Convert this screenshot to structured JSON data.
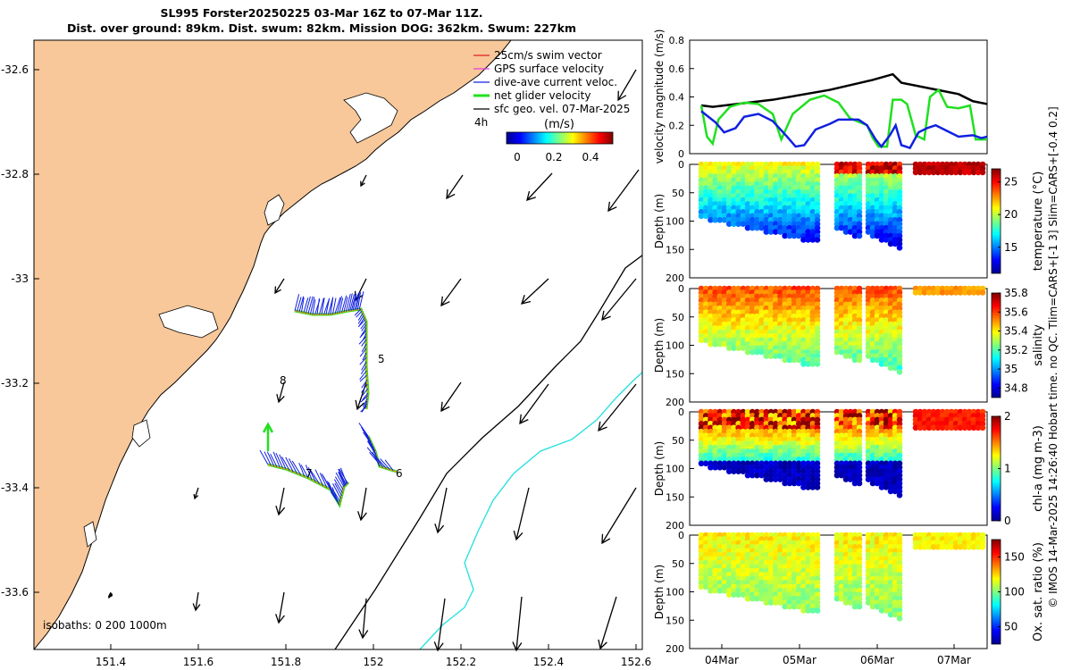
{
  "title": {
    "line1": "SL995 Forster20250225 03-Mar 16Z to 07-Mar 11Z.",
    "line2": "Dist. over ground: 89km. Dist. swum: 82km. Mission DOG: 362km. Swum: 227km"
  },
  "credit": "© IMOS 14-Mar-2025 14:26:40 Hobart time. no QC. Tlim=CARS+[-1 3] Slim=CARS+[-0.4 0.2]",
  "colors": {
    "land": "#F8C89A",
    "swim_vector": "#E02020",
    "gps_velocity": "#E040E0",
    "dive_current": "#1020E0",
    "net_velocity": "#20E020",
    "geo_velocity": "#000000",
    "isobath_200": "#000000",
    "isobath_1000": "#20E0E0"
  },
  "map": {
    "xticks": [
      "151.4",
      "151.6",
      "151.8",
      "152",
      "152.2",
      "152.4",
      "152.6"
    ],
    "yticks": [
      "-32.6",
      "-32.8",
      "-33",
      "-33.2",
      "-33.4",
      "-33.6"
    ],
    "legend": [
      {
        "label": "25cm/s swim vector",
        "color": "#E02020"
      },
      {
        "label": "GPS surface velocity",
        "color": "#E040E0"
      },
      {
        "label": "dive-ave current veloc.",
        "color": "#1020E0"
      },
      {
        "label": "net glider velocity",
        "color": "#20E020"
      },
      {
        "label": "sfc geo. vel. 07-Mar-2025",
        "color": "#000000"
      }
    ],
    "colorbar": {
      "label": "(m/s)",
      "ticks": [
        "0",
        "0.2",
        "0.4"
      ]
    },
    "track_labels": [
      "4h",
      "5",
      "6",
      "7",
      "8"
    ],
    "isobath_label": "isobaths: 0   200  1000m"
  },
  "chart_data": [
    {
      "type": "line",
      "name": "velocity-magnitude",
      "ylabel": "velocity magnitude (m/s)",
      "ylim": [
        0,
        0.8
      ],
      "yticks": [
        "0",
        "0.2",
        "0.4",
        "0.6",
        "0.8"
      ],
      "xlim": [
        0,
        1
      ],
      "series": [
        {
          "name": "sfc geo. vel.",
          "color": "#000000",
          "x": [
            0.0,
            0.04,
            0.25,
            0.45,
            0.6,
            0.67,
            0.7,
            0.8,
            0.9,
            0.95,
            1.0
          ],
          "values": [
            0.34,
            0.33,
            0.38,
            0.45,
            0.52,
            0.56,
            0.5,
            0.46,
            0.42,
            0.37,
            0.35
          ]
        },
        {
          "name": "net glider velocity",
          "color": "#20E020",
          "x": [
            0.0,
            0.02,
            0.04,
            0.06,
            0.1,
            0.15,
            0.2,
            0.25,
            0.28,
            0.32,
            0.38,
            0.43,
            0.48,
            0.52,
            0.58,
            0.6,
            0.62,
            0.65,
            0.67,
            0.7,
            0.72,
            0.75,
            0.78,
            0.8,
            0.83,
            0.86,
            0.9,
            0.94,
            0.96,
            1.0
          ],
          "values": [
            0.34,
            0.12,
            0.07,
            0.24,
            0.33,
            0.36,
            0.35,
            0.28,
            0.1,
            0.28,
            0.38,
            0.41,
            0.36,
            0.25,
            0.2,
            0.11,
            0.05,
            0.05,
            0.38,
            0.38,
            0.35,
            0.13,
            0.1,
            0.4,
            0.45,
            0.33,
            0.32,
            0.34,
            0.1,
            0.1
          ]
        },
        {
          "name": "dive-ave current veloc.",
          "color": "#1020E0",
          "x": [
            0.0,
            0.05,
            0.08,
            0.12,
            0.15,
            0.2,
            0.25,
            0.3,
            0.33,
            0.36,
            0.4,
            0.45,
            0.48,
            0.52,
            0.55,
            0.58,
            0.61,
            0.63,
            0.66,
            0.68,
            0.7,
            0.73,
            0.76,
            0.79,
            0.82,
            0.86,
            0.9,
            0.95,
            0.98,
            1.0
          ],
          "values": [
            0.3,
            0.22,
            0.15,
            0.18,
            0.26,
            0.28,
            0.23,
            0.12,
            0.05,
            0.06,
            0.17,
            0.21,
            0.24,
            0.24,
            0.24,
            0.2,
            0.1,
            0.05,
            0.13,
            0.2,
            0.06,
            0.04,
            0.15,
            0.18,
            0.2,
            0.16,
            0.12,
            0.13,
            0.11,
            0.12
          ]
        }
      ]
    },
    {
      "type": "heatmap",
      "name": "temperature",
      "ylabel": "Depth (m)",
      "cbar_label": "temperature (°C)",
      "clim": [
        11,
        27
      ],
      "cbar_ticks": [
        "15",
        "20",
        "25"
      ],
      "yticks": [
        "0",
        "50",
        "100",
        "150",
        "200"
      ],
      "ylim": [
        200,
        0
      ],
      "surface_value": 21,
      "bottom_value": 12,
      "cap": {
        "depth": 10,
        "value": 26
      }
    },
    {
      "type": "heatmap",
      "name": "salinity",
      "ylabel": "Depth (m)",
      "cbar_label": "salinity",
      "clim": [
        34.7,
        35.8
      ],
      "cbar_ticks": [
        "34.8",
        "35",
        "35.2",
        "35.4",
        "35.6",
        "35.8"
      ],
      "yticks": [
        "0",
        "50",
        "100",
        "150",
        "200"
      ],
      "ylim": [
        200,
        0
      ],
      "surface_value": 35.58,
      "bottom_value": 35.15,
      "cap": {
        "depth": 0,
        "value": 35.5
      }
    },
    {
      "type": "heatmap",
      "name": "chl-a",
      "ylabel": "Depth (m)",
      "cbar_label": "chl-a (mg m-3)",
      "clim": [
        0,
        2
      ],
      "cbar_ticks": [
        "0",
        "1",
        "2"
      ],
      "yticks": [
        "0",
        "50",
        "100",
        "150",
        "200"
      ],
      "ylim": [
        200,
        0
      ],
      "surface_value": 1.8,
      "bottom_value": 0.1,
      "cap": {
        "depth": 20,
        "value": 1.7
      }
    },
    {
      "type": "heatmap",
      "name": "oxygen",
      "ylabel": "Depth (m)",
      "cbar_label": "Ox. sat. ratio (%)",
      "clim": [
        25,
        175
      ],
      "cbar_ticks": [
        "50",
        "100",
        "150"
      ],
      "yticks": [
        "0",
        "50",
        "100",
        "150",
        "200"
      ],
      "ylim": [
        200,
        0
      ],
      "surface_value": 120,
      "bottom_value": 100,
      "cap": {
        "depth": 15,
        "value": 120
      }
    }
  ],
  "time_axis": {
    "ticks": [
      "04Mar",
      "05Mar",
      "06Mar",
      "07Mar"
    ]
  }
}
